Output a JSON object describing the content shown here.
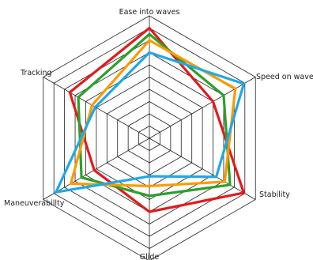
{
  "chart_data": {
    "type": "radar",
    "axes": [
      "Ease into waves",
      "Speed on wave",
      "Stability",
      "Glide",
      "Maneuverabillty",
      "Tracking"
    ],
    "range": [
      0,
      10
    ],
    "grid_levels": 10,
    "grid": true,
    "legend": "none",
    "series": [
      {
        "color": "#e41a1c",
        "values": [
          9,
          6,
          8.9,
          6,
          5.2,
          7.5
        ]
      },
      {
        "color": "#2ca02c",
        "values": [
          8.5,
          7,
          7.6,
          4.7,
          6.4,
          6.7
        ]
      },
      {
        "color": "#ff9900",
        "values": [
          8,
          8.1,
          7.1,
          3.9,
          7.4,
          5.4
        ]
      },
      {
        "color": "#1da9e8",
        "values": [
          7,
          8.9,
          6.3,
          3.1,
          8.8,
          5.1
        ]
      }
    ]
  }
}
